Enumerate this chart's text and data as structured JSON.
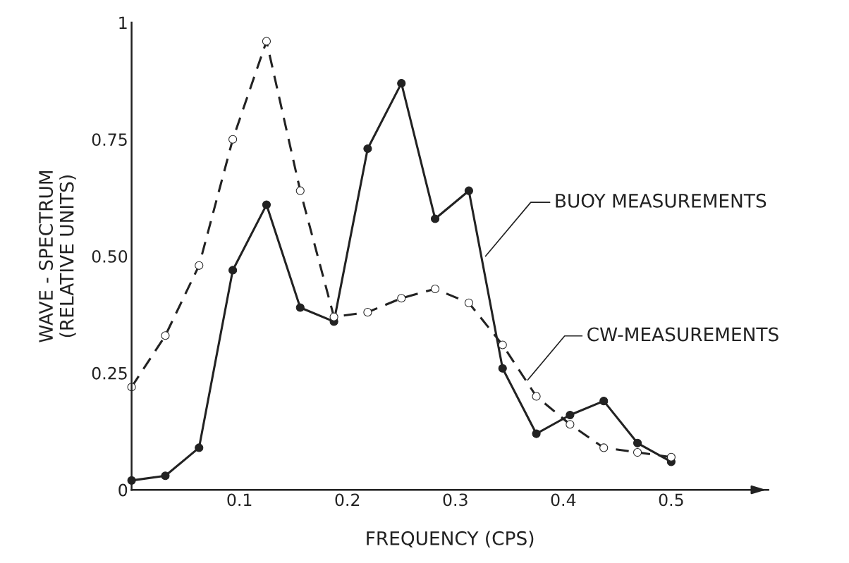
{
  "chart_data": {
    "type": "line",
    "xlabel": "FREQUENCY (CPS)",
    "ylabel": "WAVE - SPECTRUM\n(RELATIVE UNITS)",
    "x": [
      0,
      0.03125,
      0.0625,
      0.09375,
      0.125,
      0.15625,
      0.1875,
      0.21875,
      0.25,
      0.28125,
      0.3125,
      0.34375,
      0.375,
      0.40625,
      0.4375,
      0.46875,
      0.5
    ],
    "series": [
      {
        "color": "#222222",
        "line_style": "solid",
        "values": [
          0.02,
          0.03,
          0.09,
          0.47,
          0.61,
          0.39,
          0.36,
          0.73,
          0.87,
          0.58,
          0.64,
          0.26,
          0.12,
          0.16,
          0.19,
          0.1,
          0.06
        ]
      },
      {
        "color": "#222222",
        "line_style": "dashed",
        "values": [
          0.22,
          0.33,
          0.48,
          0.75,
          0.96,
          0.64,
          0.37,
          0.38,
          0.41,
          0.43,
          0.4,
          0.31,
          0.2,
          0.14,
          0.09,
          0.08,
          0.07
        ]
      }
    ],
    "marker": "circle",
    "xlim": [
      0,
      0.59
    ],
    "xticks": [
      0.1,
      0.2,
      0.3,
      0.4,
      0.5
    ],
    "ylim": [
      0,
      1
    ],
    "yticks": [
      0,
      0.25,
      {
        "value": 0.5,
        "label": "0.50"
      },
      0.75,
      1
    ],
    "annotations": [
      {
        "text": "BUOY MEASUREMENTS",
        "x": 0.328,
        "y": 0.5
      },
      {
        "text": "CW-MEASUREMENTS",
        "x": 0.367,
        "y": 0.235
      }
    ],
    "grid": false,
    "legend": false
  }
}
